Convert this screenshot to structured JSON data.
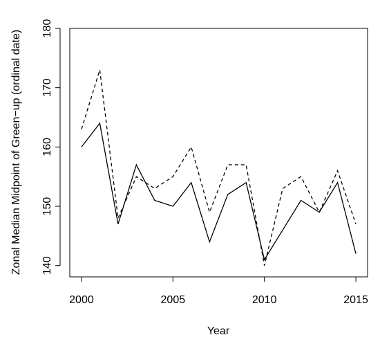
{
  "chart_data": {
    "type": "line",
    "xlabel": "Year",
    "ylabel": "Zonal Median Midpoint of Green−up (ordinal date)",
    "x": [
      2000,
      2001,
      2002,
      2003,
      2004,
      2005,
      2006,
      2007,
      2008,
      2009,
      2010,
      2011,
      2012,
      2013,
      2014,
      2015
    ],
    "series": [
      {
        "color": "#000000",
        "dashed": false,
        "values": [
          160,
          164,
          147,
          157,
          151,
          150,
          154,
          144,
          152,
          154,
          141,
          146,
          151,
          149,
          154,
          142
        ]
      },
      {
        "color": "#000000",
        "dashed": true,
        "values": [
          163,
          173,
          148,
          155,
          153,
          155,
          160,
          149,
          157,
          157,
          140,
          153,
          155,
          149,
          156,
          147
        ]
      }
    ],
    "xlim": [
      1999.36,
      2015.64
    ],
    "xticks": [
      2000,
      2005,
      2010,
      2015
    ],
    "ylim": [
      138.1,
      180
    ],
    "yticks": [
      140,
      150,
      160,
      170,
      180
    ],
    "grid": false
  }
}
